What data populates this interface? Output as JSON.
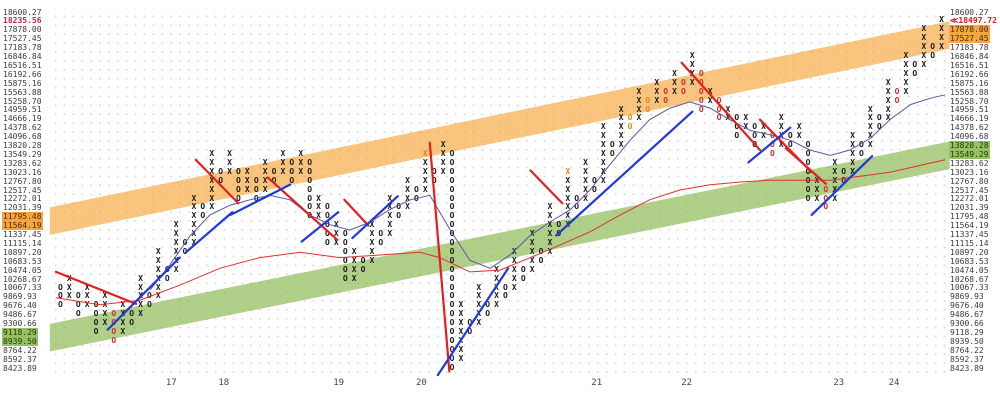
{
  "chart_data": {
    "type": "point_and_figure",
    "title": "",
    "scale": "logarithmic 2% boxes",
    "ylim": [
      8423.89,
      18600.27
    ],
    "grid": true,
    "prices": [
      "18600.27",
      "18235.56",
      "17878.00",
      "17527.45",
      "17183.78",
      "16846.84",
      "16516.51",
      "16192.66",
      "15875.16",
      "15563.88",
      "15258.70",
      "14959.51",
      "14666.19",
      "14378.62",
      "14096.68",
      "13820.28",
      "13549.29",
      "13283.62",
      "13023.16",
      "12767.80",
      "12517.45",
      "12272.01",
      "12031.39",
      "11795.48",
      "11564.19",
      "11337.45",
      "11115.14",
      "10897.20",
      "10683.53",
      "10474.05",
      "10268.67",
      "10067.33",
      "9869.93",
      "9676.40",
      "9486.67",
      "9300.66",
      "9118.29",
      "8939.50",
      "8764.22",
      "8592.37",
      "8423.89"
    ],
    "price_marker": {
      "row_replaced": 1,
      "text": "≪18497.72",
      "value": 18497.72
    },
    "left_marks": {
      "1": "red-text",
      "23": "orange-bg",
      "24": "orange-bg",
      "36": "green-bg",
      "37": "green-bg"
    },
    "right_marks": {
      "2": "orange-bg",
      "3": "orange-bg",
      "15": "green-bg",
      "16": "green-bg"
    },
    "x_labels": [
      {
        "t": "17",
        "u": 12.8
      },
      {
        "t": "18",
        "u": 18.7
      },
      {
        "t": "19",
        "u": 31.6
      },
      {
        "t": "20",
        "u": 40.9
      },
      {
        "t": "21",
        "u": 60.6
      },
      {
        "t": "22",
        "u": 70.7
      },
      {
        "t": "23",
        "u": 87.8
      },
      {
        "t": "24",
        "u": 94.0
      }
    ],
    "bands": [
      {
        "name": "resistance-band",
        "color": "rgba(245,158,40,0.6)",
        "u0": -0.7,
        "r0": 23.5,
        "u1": 100.4,
        "r1": 2.6,
        "hw": 1.55
      },
      {
        "name": "support-band",
        "color": "rgba(133,182,72,0.65)",
        "u0": -0.7,
        "r0": 36.6,
        "u1": 100.4,
        "r1": 16.1,
        "hw": 1.55
      }
    ],
    "trend_lines": [
      {
        "dir": "down",
        "color": "red",
        "pts": [
          [
            0,
            29.2
          ],
          [
            9,
            32.8
          ]
        ]
      },
      {
        "dir": "down",
        "color": "red",
        "pts": [
          [
            15.7,
            16.6
          ],
          [
            20.5,
            21.5
          ]
        ]
      },
      {
        "dir": "down",
        "color": "red",
        "pts": [
          [
            23.8,
            18.6
          ],
          [
            31.6,
            25.6
          ]
        ]
      },
      {
        "dir": "down",
        "color": "red",
        "pts": [
          [
            32.4,
            21.1
          ],
          [
            35.1,
            24.0
          ]
        ]
      },
      {
        "dir": "down",
        "color": "red",
        "pts": [
          [
            42.0,
            14.7
          ],
          [
            44.2,
            40.4
          ]
        ]
      },
      {
        "dir": "down",
        "color": "red",
        "pts": [
          [
            53.3,
            17.8
          ],
          [
            56.9,
            21.5
          ]
        ]
      },
      {
        "dir": "down",
        "color": "red",
        "pts": [
          [
            70.3,
            5.7
          ],
          [
            79.1,
            15.5
          ]
        ]
      },
      {
        "dir": "down",
        "color": "red",
        "pts": [
          [
            79.1,
            12.1
          ],
          [
            84.9,
            18.0
          ]
        ]
      },
      {
        "dir": "down",
        "color": "red",
        "pts": [
          [
            82.0,
            15.3
          ],
          [
            86.5,
            19.3
          ]
        ]
      },
      {
        "dir": "up",
        "color": "blue",
        "pts": [
          [
            5.8,
            35.7
          ],
          [
            13.9,
            27.6
          ]
        ]
      },
      {
        "dir": "up",
        "color": "blue",
        "pts": [
          [
            14.6,
            27.0
          ],
          [
            19.8,
            22.5
          ]
        ]
      },
      {
        "dir": "up",
        "color": "blue",
        "pts": [
          [
            19.6,
            22.8
          ],
          [
            26.3,
            19.4
          ]
        ]
      },
      {
        "dir": "up",
        "color": "blue",
        "pts": [
          [
            27.6,
            25.8
          ],
          [
            31.7,
            22.5
          ]
        ]
      },
      {
        "dir": "up",
        "color": "blue",
        "pts": [
          [
            33.3,
            25.4
          ],
          [
            38.4,
            20.7
          ]
        ]
      },
      {
        "dir": "up",
        "color": "blue",
        "pts": [
          [
            42.9,
            40.8
          ],
          [
            50.8,
            28.8
          ]
        ]
      },
      {
        "dir": "up",
        "color": "blue",
        "pts": [
          [
            56.2,
            25.1
          ],
          [
            71.5,
            11.2
          ]
        ]
      },
      {
        "dir": "up",
        "color": "blue",
        "pts": [
          [
            77.8,
            16.9
          ],
          [
            82.5,
            13.0
          ]
        ]
      },
      {
        "dir": "up",
        "color": "blue",
        "pts": [
          [
            84.9,
            22.8
          ],
          [
            91.7,
            16.2
          ]
        ]
      }
    ],
    "ma_lines": [
      {
        "name": "long-ma",
        "color": "#e03030",
        "w": 1,
        "pts": [
          [
            0,
            32.1
          ],
          [
            4.9,
            32.9
          ],
          [
            9.4,
            32.4
          ],
          [
            13.9,
            30.7
          ],
          [
            18.4,
            28.8
          ],
          [
            22.9,
            27.6
          ],
          [
            27.4,
            27
          ],
          [
            31.9,
            27.6
          ],
          [
            36.4,
            27.3
          ],
          [
            40.9,
            27
          ],
          [
            43.1,
            27.6
          ],
          [
            46.5,
            29.2
          ],
          [
            49.9,
            29
          ],
          [
            53.3,
            27.6
          ],
          [
            56.6,
            26.2
          ],
          [
            60,
            24.7
          ],
          [
            63.4,
            22.8
          ],
          [
            66.7,
            21.1
          ],
          [
            70.1,
            20
          ],
          [
            73.5,
            19.4
          ],
          [
            76.9,
            19.1
          ],
          [
            80.2,
            18.9
          ],
          [
            87,
            18.9
          ],
          [
            93.7,
            18
          ],
          [
            99.9,
            16.6
          ]
        ]
      },
      {
        "name": "short-ma",
        "color": "#5b55a6",
        "w": 1,
        "pts": [
          [
            10.6,
            31.2
          ],
          [
            12.8,
            28.4
          ],
          [
            15.1,
            25.1
          ],
          [
            17.3,
            22.8
          ],
          [
            19.6,
            21.7
          ],
          [
            21.8,
            21.1
          ],
          [
            24,
            20.6
          ],
          [
            26.3,
            21.1
          ],
          [
            28.5,
            22.8
          ],
          [
            30.8,
            23.9
          ],
          [
            33,
            24.5
          ],
          [
            35.3,
            23.6
          ],
          [
            37.5,
            22.2
          ],
          [
            39.8,
            21.1
          ],
          [
            42,
            20.6
          ],
          [
            44.3,
            24.5
          ],
          [
            46.5,
            27.9
          ],
          [
            48.8,
            28.8
          ],
          [
            51,
            27.3
          ],
          [
            53.3,
            25.1
          ],
          [
            55.5,
            23.6
          ],
          [
            57.8,
            22.2
          ],
          [
            60,
            20
          ],
          [
            62.2,
            17.2
          ],
          [
            64.5,
            14.4
          ],
          [
            66.7,
            12.1
          ],
          [
            69,
            10.8
          ],
          [
            71.2,
            10.1
          ],
          [
            73.5,
            10.8
          ],
          [
            75.7,
            12.1
          ],
          [
            78,
            13.3
          ],
          [
            80.2,
            13.8
          ],
          [
            82.5,
            14.4
          ],
          [
            84.7,
            15.5
          ],
          [
            87,
            16.1
          ],
          [
            89.2,
            15.5
          ],
          [
            91.5,
            14.2
          ],
          [
            93.7,
            12.1
          ],
          [
            96,
            10.4
          ],
          [
            98.2,
            9.7
          ],
          [
            99.9,
            9.3
          ]
        ]
      }
    ],
    "columns": [
      [
        0,
        "O",
        31,
        33
      ],
      [
        1,
        "X",
        30,
        32
      ],
      [
        2,
        "O",
        32,
        34
      ],
      [
        3,
        "X",
        31,
        33
      ],
      [
        4,
        "O",
        33,
        36
      ],
      [
        5,
        "X",
        32,
        35
      ],
      [
        6,
        "O",
        34,
        37,
        "red"
      ],
      [
        7,
        "X",
        33,
        36
      ],
      [
        8,
        "O",
        34,
        35
      ],
      [
        9,
        "X",
        30,
        34
      ],
      [
        10,
        "O",
        32,
        33
      ],
      [
        11,
        "X",
        27,
        32
      ],
      [
        12,
        "O",
        29,
        30
      ],
      [
        13,
        "X",
        24,
        29
      ],
      [
        14,
        "O",
        26,
        27
      ],
      [
        15,
        "X",
        21,
        26
      ],
      [
        16,
        "O",
        22,
        23
      ],
      [
        17,
        "X",
        16,
        22
      ],
      [
        18,
        "O",
        18,
        19
      ],
      [
        19,
        "X",
        16,
        18
      ],
      [
        20,
        "O",
        18,
        21
      ],
      [
        21,
        "X",
        18,
        20
      ],
      [
        22,
        "O",
        19,
        21
      ],
      [
        23,
        "X",
        17,
        20
      ],
      [
        24,
        "O",
        18,
        19
      ],
      [
        25,
        "X",
        16,
        18
      ],
      [
        26,
        "O",
        17,
        19
      ],
      [
        27,
        "X",
        16,
        18
      ],
      [
        28,
        "O",
        17,
        23
      ],
      [
        29,
        "X",
        21,
        23
      ],
      [
        30,
        "O",
        22,
        26
      ],
      [
        31,
        "X",
        24,
        26
      ],
      [
        32,
        "O",
        25,
        30
      ],
      [
        33,
        "X",
        27,
        30
      ],
      [
        34,
        "O",
        28,
        29
      ],
      [
        35,
        "X",
        24,
        28
      ],
      [
        36,
        "O",
        25,
        26
      ],
      [
        37,
        "X",
        21,
        25
      ],
      [
        38,
        "O",
        22,
        23
      ],
      [
        39,
        "X",
        19,
        22
      ],
      [
        40,
        "O",
        20,
        21
      ],
      [
        41,
        "X",
        17,
        20
      ],
      [
        42,
        "O",
        18,
        19
      ],
      [
        43,
        "X",
        15,
        18
      ],
      [
        44,
        "O",
        16,
        40
      ],
      [
        45,
        "X",
        33,
        39
      ],
      [
        46,
        "O",
        35,
        36
      ],
      [
        47,
        "X",
        31,
        35
      ],
      [
        48,
        "O",
        33,
        34
      ],
      [
        49,
        "X",
        29,
        33
      ],
      [
        50,
        "O",
        31,
        32
      ],
      [
        51,
        "X",
        27,
        31
      ],
      [
        52,
        "O",
        29,
        30
      ],
      [
        53,
        "X",
        25,
        29
      ],
      [
        54,
        "O",
        27,
        28
      ],
      [
        55,
        "X",
        22,
        27
      ],
      [
        56,
        "O",
        24,
        25
      ],
      [
        57,
        "X",
        19,
        24
      ],
      [
        58,
        "O",
        21,
        22
      ],
      [
        59,
        "X",
        17,
        21
      ],
      [
        60,
        "O",
        19,
        20
      ],
      [
        61,
        "X",
        13,
        19
      ],
      [
        62,
        "O",
        15,
        16
      ],
      [
        63,
        "X",
        11,
        15
      ],
      [
        64,
        "O",
        12,
        13,
        "orange"
      ],
      [
        65,
        "X",
        9,
        12
      ],
      [
        66,
        "O",
        10,
        11,
        "orange"
      ],
      [
        67,
        "X",
        8,
        10
      ],
      [
        68,
        "O",
        9,
        10,
        "red"
      ],
      [
        69,
        "X",
        7,
        9
      ],
      [
        70,
        "O",
        8,
        9,
        "red"
      ],
      [
        71,
        "X",
        5,
        8
      ],
      [
        72,
        "O",
        7,
        11,
        "red"
      ],
      [
        73,
        "X",
        9,
        10
      ],
      [
        74,
        "O",
        10,
        12,
        "red"
      ],
      [
        75,
        "X",
        11,
        12
      ],
      [
        76,
        "O",
        12,
        14
      ],
      [
        77,
        "X",
        12,
        13
      ],
      [
        78,
        "O",
        13,
        15
      ],
      [
        79,
        "X",
        13,
        14
      ],
      [
        80,
        "O",
        14,
        16,
        "red"
      ],
      [
        81,
        "X",
        12,
        15
      ],
      [
        82,
        "O",
        14,
        15
      ],
      [
        83,
        "X",
        13,
        14
      ],
      [
        84,
        "O",
        15,
        21
      ],
      [
        85,
        "X",
        19,
        21
      ],
      [
        86,
        "O",
        20,
        22,
        "red"
      ],
      [
        87,
        "X",
        17,
        21
      ],
      [
        88,
        "O",
        18,
        19
      ],
      [
        89,
        "X",
        14,
        18
      ],
      [
        90,
        "O",
        15,
        16
      ],
      [
        91,
        "X",
        11,
        15
      ],
      [
        92,
        "O",
        12,
        13
      ],
      [
        93,
        "X",
        8,
        12
      ],
      [
        94,
        "O",
        9,
        10,
        "red"
      ],
      [
        95,
        "X",
        5,
        9
      ],
      [
        96,
        "O",
        6,
        7
      ],
      [
        97,
        "X",
        2,
        6
      ],
      [
        98,
        "O",
        4,
        5
      ],
      [
        99,
        "X",
        1,
        4
      ]
    ],
    "marks": [
      {
        "c": 41,
        "r": 16,
        "t": "X",
        "color": "orange"
      },
      {
        "c": 57,
        "r": 18,
        "t": "X",
        "color": "orange"
      }
    ],
    "colors": {
      "trend_up": "#2238d8",
      "trend_down": "#e32020",
      "band_orange": "#f5a340",
      "band_green": "#8cb850",
      "marker_red": "#e01515",
      "glyph_black": "#1a1a1a"
    }
  }
}
